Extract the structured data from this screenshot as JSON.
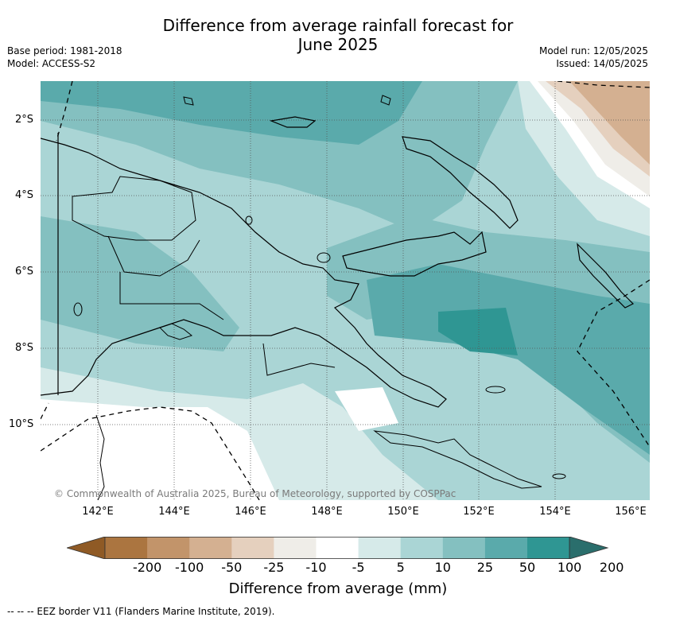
{
  "header": {
    "title_line1": "Difference from average rainfall forecast for",
    "title_line2": "June 2025",
    "base_period": "Base period: 1981-2018",
    "model": "Model: ACCESS-S2",
    "model_run": "Model run: 12/05/2025",
    "issued": "Issued: 14/05/2025"
  },
  "map": {
    "lat_labels": [
      "2°S",
      "4°S",
      "6°S",
      "8°S",
      "10°S"
    ],
    "lon_labels": [
      "142°E",
      "144°E",
      "146°E",
      "148°E",
      "150°E",
      "152°E",
      "154°E",
      "156°E"
    ],
    "copyright": "© Commonwealth of Australia 2025, Bureau of Meteorology, supported by COSPPac"
  },
  "colorbar": {
    "tick_labels": [
      "-200",
      "-100",
      "-50",
      "-25",
      "-10",
      "-5",
      "5",
      "10",
      "25",
      "50",
      "100",
      "200"
    ],
    "colors": [
      "#8f5a25",
      "#ab7540",
      "#c2946a",
      "#d4b091",
      "#e5d0be",
      "#efede8",
      "#ffffff",
      "#d6eae9",
      "#aad5d5",
      "#84c0c0",
      "#5aaaab",
      "#2f9693",
      "#2a6e6c"
    ],
    "title": "Difference from average (mm)"
  },
  "legend_note": "--  --  -- EEZ border V11 (Flanders Marine Institute, 2019)."
}
